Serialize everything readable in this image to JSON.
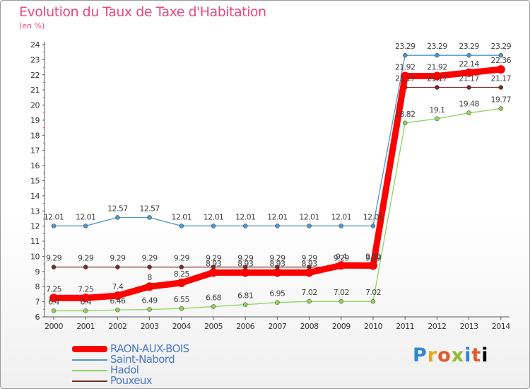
{
  "chart_data": {
    "type": "line",
    "title": "Evolution du Taux de Taxe d'Habitation",
    "subtitle": "(en %)",
    "x": [
      "2000",
      "2001",
      "2002",
      "2003",
      "2004",
      "2005",
      "2006",
      "2007",
      "2008",
      "2009",
      "2010",
      "2011",
      "2012",
      "2013",
      "2014"
    ],
    "ylim": [
      6,
      24
    ],
    "yticks": [
      6,
      7,
      8,
      9,
      10,
      11,
      12,
      13,
      14,
      15,
      16,
      17,
      18,
      19,
      20,
      21,
      22,
      23,
      24
    ],
    "grid": false,
    "legend_position": "bottom-left",
    "series": [
      {
        "name": "RAON-AUX-BOIS",
        "color": "#ff0000",
        "values": [
          7.25,
          7.25,
          7.4,
          8,
          8.25,
          8.93,
          8.93,
          8.93,
          8.93,
          9.4,
          9.39,
          21.92,
          21.92,
          22.14,
          22.36
        ],
        "labels": [
          "7.25",
          "7.25",
          "7.4",
          "8",
          "8.25",
          "8.93",
          "8.93",
          "8.93",
          "8.93",
          "9.4",
          "9.39",
          "21.92",
          "21.92",
          "22.14",
          "22.36"
        ]
      },
      {
        "name": "Saint-Nabord",
        "color": "#4f97cc",
        "values": [
          12.01,
          12.01,
          12.57,
          12.57,
          12.01,
          12.01,
          12.01,
          12.01,
          12.01,
          12.01,
          12.01,
          23.29,
          23.29,
          23.29,
          23.29
        ],
        "labels": [
          "12.01",
          "12.01",
          "12.57",
          "12.57",
          "12.01",
          "12.01",
          "12.01",
          "12.01",
          "12.01",
          "12.01",
          "12.01",
          "23.29",
          "23.29",
          "23.29",
          "23.29"
        ]
      },
      {
        "name": "Hadol",
        "color": "#8ed35a",
        "values": [
          6.4,
          6.4,
          6.46,
          6.49,
          6.55,
          6.68,
          6.81,
          6.95,
          7.02,
          7.02,
          7.02,
          18.82,
          19.1,
          19.48,
          19.77
        ],
        "labels": [
          "6.4",
          "6.4",
          "6.46",
          "6.49",
          "6.55",
          "6.68",
          "6.81",
          "6.95",
          "7.02",
          "7.02",
          "7.02",
          "18.82",
          "19.1",
          "19.48",
          "19.77"
        ]
      },
      {
        "name": "Pouxeux",
        "color": "#7a2a2a",
        "values": [
          9.29,
          9.29,
          9.29,
          9.29,
          9.29,
          9.29,
          9.29,
          9.29,
          9.29,
          9.29,
          9.29,
          21.17,
          21.17,
          21.17,
          21.17
        ],
        "labels": [
          "9.29",
          "9.29",
          "9.29",
          "9.29",
          "9.29",
          "9.29",
          "9.29",
          "9.29",
          "9.29",
          "9.29",
          "9.29",
          "21.17",
          "21.17",
          "21.17",
          "21.17"
        ]
      }
    ]
  },
  "brand": {
    "letters": [
      "P",
      "r",
      "o",
      "x",
      "i",
      "t",
      "i"
    ],
    "name": "Proxiti"
  }
}
